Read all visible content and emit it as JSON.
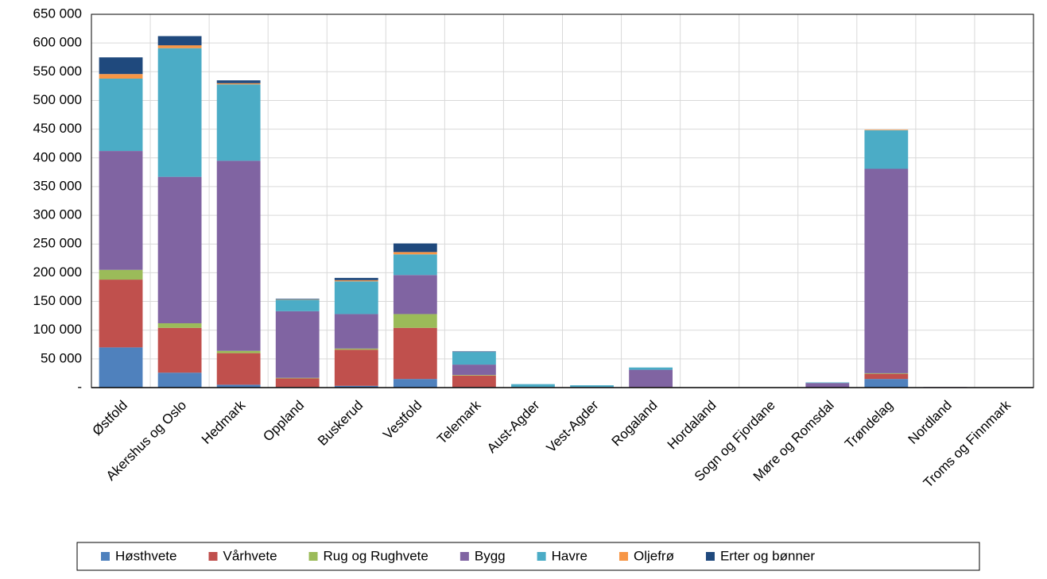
{
  "chart_data": {
    "type": "stacked-bar",
    "categories": [
      "Østfold",
      "Akershus og Oslo",
      "Hedmark",
      "Oppland",
      "Buskerud",
      "Vestfold",
      "Telemark",
      "Aust-Agder",
      "Vest-Agder",
      "Rogaland",
      "Hordaland",
      "Sogn og Fjordane",
      "Møre og Romsdal",
      "Trøndelag",
      "Nordland",
      "Troms og Finnmark"
    ],
    "series": [
      {
        "name": "Høsthvete",
        "color": "#4f81bd",
        "values": [
          70000,
          26000,
          5000,
          1000,
          3000,
          15000,
          1000,
          0,
          0,
          0,
          0,
          0,
          0,
          15000,
          0,
          0
        ]
      },
      {
        "name": "Vårhvete",
        "color": "#c0504d",
        "values": [
          118000,
          78000,
          55000,
          15000,
          63000,
          89000,
          20000,
          0,
          0,
          1000,
          0,
          0,
          0,
          9000,
          0,
          0
        ]
      },
      {
        "name": "Rug og Rughvete",
        "color": "#9bbb59",
        "values": [
          17000,
          8000,
          4000,
          1000,
          2000,
          24000,
          1000,
          0,
          0,
          0,
          0,
          0,
          0,
          1000,
          0,
          0
        ]
      },
      {
        "name": "Bygg",
        "color": "#8064a2",
        "values": [
          207000,
          255000,
          331000,
          116000,
          60000,
          68000,
          18000,
          1000,
          1000,
          30000,
          0,
          0,
          8000,
          356000,
          1000,
          0
        ]
      },
      {
        "name": "Havre",
        "color": "#4bacc6",
        "values": [
          126000,
          224000,
          133000,
          20000,
          57000,
          36000,
          22000,
          5000,
          3000,
          4000,
          0,
          0,
          1000,
          67000,
          0,
          0
        ]
      },
      {
        "name": "Oljefrø",
        "color": "#f79646",
        "values": [
          8000,
          5000,
          2000,
          500,
          2000,
          4000,
          0,
          0,
          0,
          0,
          0,
          0,
          0,
          1000,
          0,
          0
        ]
      },
      {
        "name": "Erter og bønner",
        "color": "#1f497d",
        "values": [
          29000,
          16000,
          5000,
          1000,
          4000,
          15000,
          1000,
          0,
          0,
          0,
          0,
          0,
          0,
          0,
          0,
          0
        ]
      }
    ],
    "ylim": [
      0,
      650000
    ],
    "yticks": [
      {
        "value": 0,
        "label": "-"
      },
      {
        "value": 50000,
        "label": "50 000"
      },
      {
        "value": 100000,
        "label": "100 000"
      },
      {
        "value": 150000,
        "label": "150 000"
      },
      {
        "value": 200000,
        "label": "200 000"
      },
      {
        "value": 250000,
        "label": "250 000"
      },
      {
        "value": 300000,
        "label": "300 000"
      },
      {
        "value": 350000,
        "label": "350 000"
      },
      {
        "value": 400000,
        "label": "400 000"
      },
      {
        "value": 450000,
        "label": "450 000"
      },
      {
        "value": 500000,
        "label": "500 000"
      },
      {
        "value": 550000,
        "label": "550 000"
      },
      {
        "value": 600000,
        "label": "600 000"
      },
      {
        "value": 650000,
        "label": "650 000"
      }
    ],
    "grid": true,
    "legend": "bottom"
  }
}
